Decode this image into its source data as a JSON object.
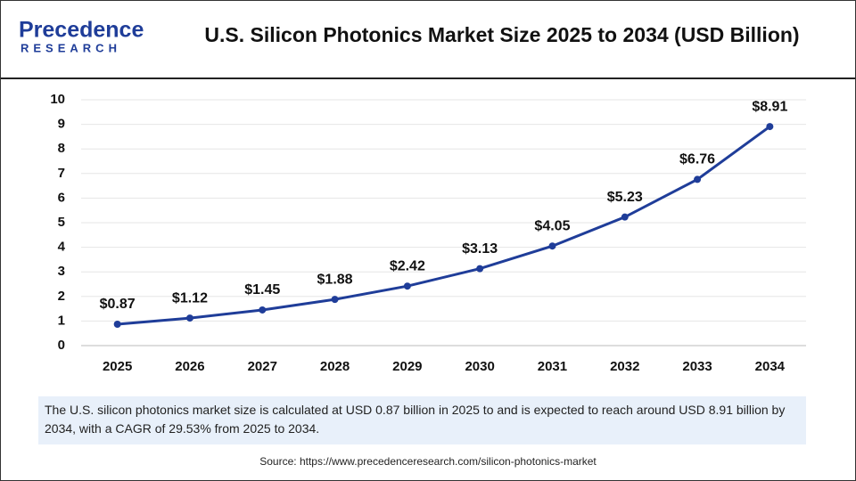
{
  "header": {
    "logo_top": "Precedence",
    "logo_bottom": "RESEARCH"
  },
  "chart_data": {
    "type": "line",
    "title": "U.S. Silicon Photonics Market Size 2025 to 2034 (USD Billion)",
    "categories": [
      "2025",
      "2026",
      "2027",
      "2028",
      "2029",
      "2030",
      "2031",
      "2032",
      "2033",
      "2034"
    ],
    "values": [
      0.87,
      1.12,
      1.45,
      1.88,
      2.42,
      3.13,
      4.05,
      5.23,
      6.76,
      8.91
    ],
    "value_labels": [
      "$0.87",
      "$1.12",
      "$1.45",
      "$1.88",
      "$2.42",
      "$3.13",
      "$4.05",
      "$5.23",
      "$6.76",
      "$8.91"
    ],
    "color": "#1f3d99",
    "ylim": [
      0,
      10
    ],
    "yticks": [
      0,
      1,
      2,
      3,
      4,
      5,
      6,
      7,
      8,
      9,
      10
    ],
    "grid": true
  },
  "description": "The U.S. silicon photonics market size is calculated at USD 0.87 billion in 2025 to and is expected to reach around USD 8.91 billion by 2034, with a CAGR of 29.53% from 2025 to 2034.",
  "source": "Source: https://www.precedenceresearch.com/silicon-photonics-market"
}
